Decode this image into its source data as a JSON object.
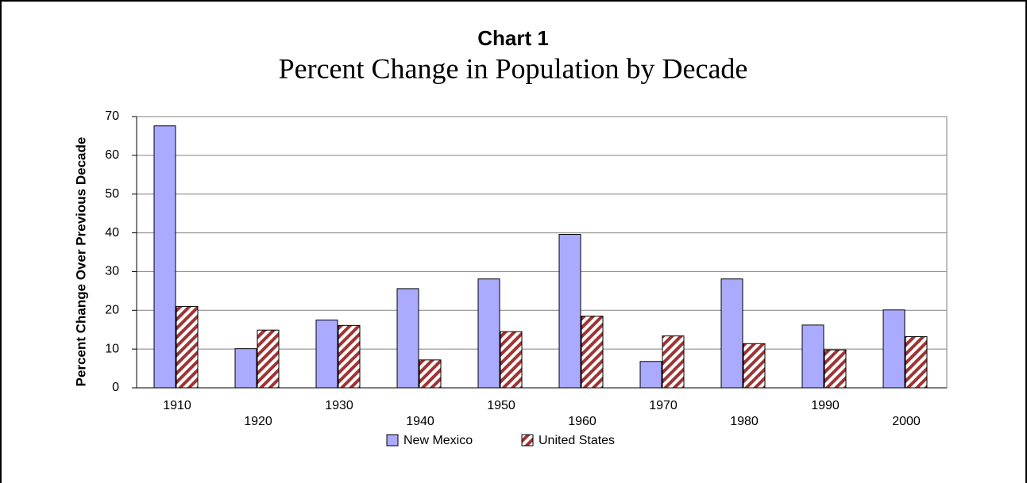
{
  "chart_data": {
    "type": "bar",
    "title": "Chart  1",
    "subtitle": "Percent Change in Population by Decade",
    "y_label": "Percent Change Over Previous Decade",
    "categories": [
      "1910",
      "1920",
      "1930",
      "1940",
      "1950",
      "1960",
      "1970",
      "1980",
      "1990",
      "2000"
    ],
    "series": [
      {
        "name": "New Mexico",
        "color": "#aaaaff",
        "values": [
          67.6,
          10.1,
          17.5,
          25.6,
          28.1,
          39.6,
          6.8,
          28.1,
          16.2,
          20.1
        ]
      },
      {
        "name": "United States",
        "color": "#a03333",
        "hatch": true,
        "values": [
          21.0,
          14.9,
          16.1,
          7.2,
          14.5,
          18.5,
          13.4,
          11.4,
          9.8,
          13.2
        ]
      }
    ],
    "ylim": [
      0,
      70
    ],
    "yticks": [
      0,
      10,
      20,
      30,
      40,
      50,
      60,
      70
    ],
    "grid": true,
    "legend": "bottom"
  }
}
